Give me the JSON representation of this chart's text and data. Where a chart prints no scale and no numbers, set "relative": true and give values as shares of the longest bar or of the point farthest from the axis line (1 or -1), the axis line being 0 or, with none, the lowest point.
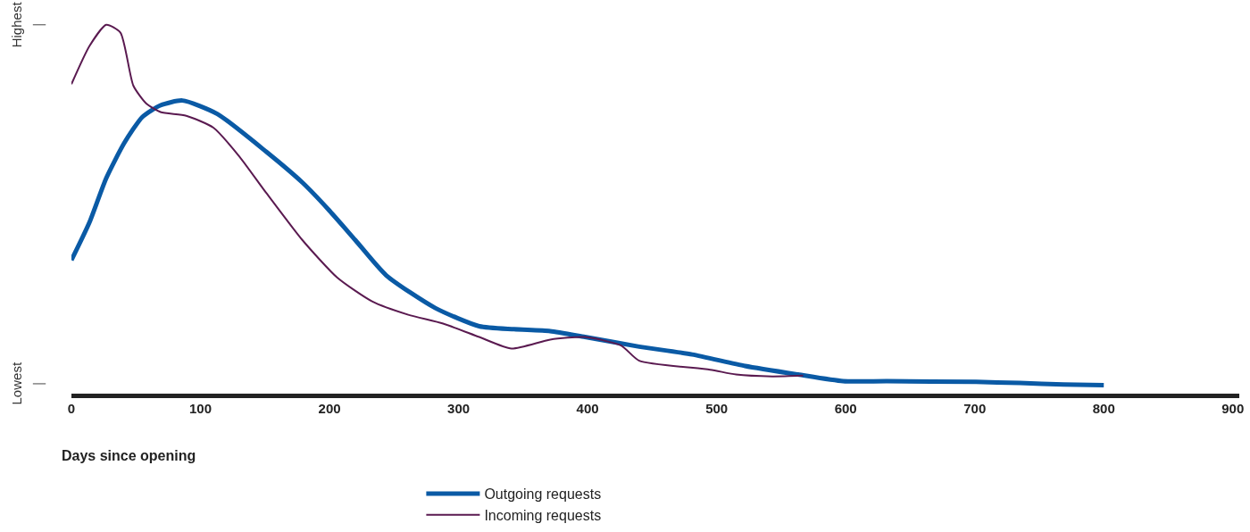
{
  "chart_data": {
    "type": "line",
    "relative": true,
    "xlabel": "Days since opening",
    "annotations": [
      "Highest",
      "Lowest"
    ],
    "xlim": [
      0,
      905
    ],
    "xticks": [
      0,
      100,
      200,
      300,
      400,
      500,
      600,
      700,
      800,
      900
    ],
    "legend": "bottom",
    "marker": "none",
    "line_style": "solid",
    "series": [
      {
        "name": "Outgoing requests",
        "color": "#0a5aa5",
        "x": [
          0,
          14,
          27,
          41,
          55,
          69,
          86,
          113,
          151,
          179,
          199,
          220,
          244,
          282,
          316,
          343,
          371,
          398,
          440,
          481,
          522,
          563,
          598,
          632,
          701,
          735,
          769,
          800
        ],
        "values": [
          0.366,
          0.468,
          0.587,
          0.682,
          0.752,
          0.783,
          0.796,
          0.76,
          0.658,
          0.575,
          0.503,
          0.42,
          0.325,
          0.237,
          0.188,
          0.18,
          0.175,
          0.159,
          0.133,
          0.112,
          0.081,
          0.058,
          0.04,
          0.04,
          0.038,
          0.035,
          0.031,
          0.029
        ]
      },
      {
        "name": "Incoming requests",
        "color": "#5a1a50",
        "x": [
          0,
          14,
          27,
          38,
          48,
          58,
          69,
          89,
          110,
          130,
          151,
          179,
          206,
          233,
          261,
          288,
          316,
          341,
          371,
          398,
          426,
          440,
          495,
          515,
          543,
          567
        ],
        "values": [
          0.84,
          0.943,
          1.0,
          0.979,
          0.836,
          0.788,
          0.765,
          0.755,
          0.723,
          0.646,
          0.547,
          0.42,
          0.319,
          0.255,
          0.219,
          0.195,
          0.159,
          0.128,
          0.152,
          0.159,
          0.136,
          0.095,
          0.071,
          0.058,
          0.053,
          0.055
        ]
      }
    ]
  }
}
